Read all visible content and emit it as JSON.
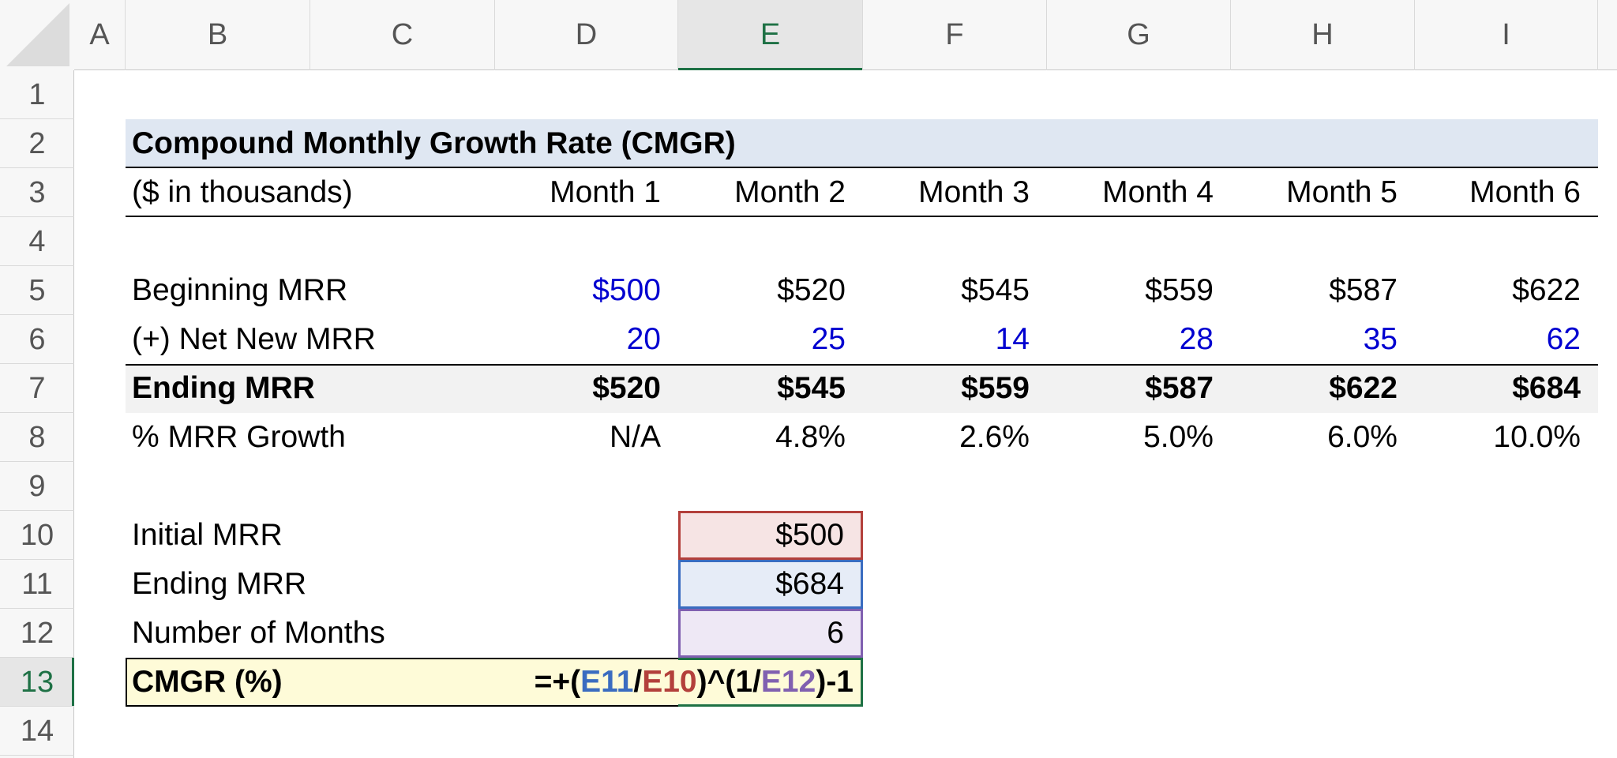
{
  "column_headers": [
    "A",
    "B",
    "C",
    "D",
    "E",
    "F",
    "G",
    "H",
    "I"
  ],
  "row_headers": [
    "1",
    "2",
    "3",
    "4",
    "5",
    "6",
    "7",
    "8",
    "9",
    "10",
    "11",
    "12",
    "13",
    "14"
  ],
  "title": "Compound Monthly Growth Rate (CMGR)",
  "units_label": "($ in thousands)",
  "months": [
    "Month 1",
    "Month 2",
    "Month 3",
    "Month 4",
    "Month 5",
    "Month 6"
  ],
  "rows": [
    {
      "label": "Beginning MRR",
      "values": [
        "$500",
        "$520",
        "$545",
        "$559",
        "$587",
        "$622"
      ]
    },
    {
      "label": "(+) Net New MRR",
      "values": [
        "20",
        "25",
        "14",
        "28",
        "35",
        "62"
      ]
    },
    {
      "label": "Ending MRR",
      "values": [
        "$520",
        "$545",
        "$559",
        "$587",
        "$622",
        "$684"
      ]
    },
    {
      "label": "% MRR Growth",
      "values": [
        "N/A",
        "4.8%",
        "2.6%",
        "5.0%",
        "6.0%",
        "10.0%"
      ]
    }
  ],
  "summary": [
    {
      "label": "Initial MRR",
      "value": "$500"
    },
    {
      "label": "Ending MRR",
      "value": "$684"
    },
    {
      "label": "Number of Months",
      "value": "6"
    }
  ],
  "cmgr": {
    "label": "CMGR (%)",
    "formula": [
      "=+(",
      "E11",
      "/",
      "E10",
      ")^(1/",
      "E12",
      ")-1"
    ]
  }
}
